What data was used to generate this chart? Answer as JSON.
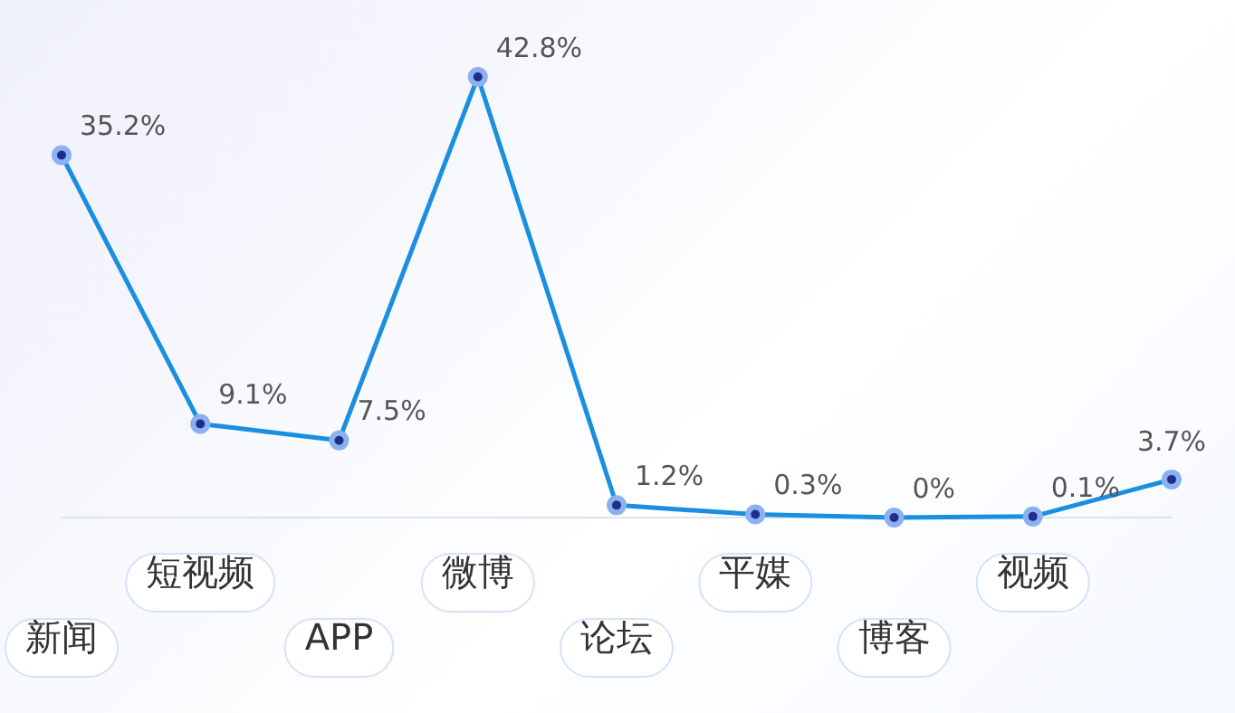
{
  "chart_data": {
    "type": "line",
    "categories": [
      "新闻",
      "短视频",
      "APP",
      "微博",
      "论坛",
      "平媒",
      "博客",
      "视频",
      null
    ],
    "series": [
      {
        "color": "#1a8fe0",
        "values": [
          35.2,
          9.1,
          7.5,
          42.8,
          1.2,
          0.3,
          0,
          0.1,
          3.7
        ],
        "value_labels": [
          "35.2%",
          "9.1%",
          "7.5%",
          "42.8%",
          "1.2%",
          "0.3%",
          "0%",
          "0.1%",
          "3.7%"
        ]
      }
    ],
    "tick_labels": "x",
    "grid": false,
    "legend": false,
    "marker": "circle",
    "line_style": "solid"
  }
}
